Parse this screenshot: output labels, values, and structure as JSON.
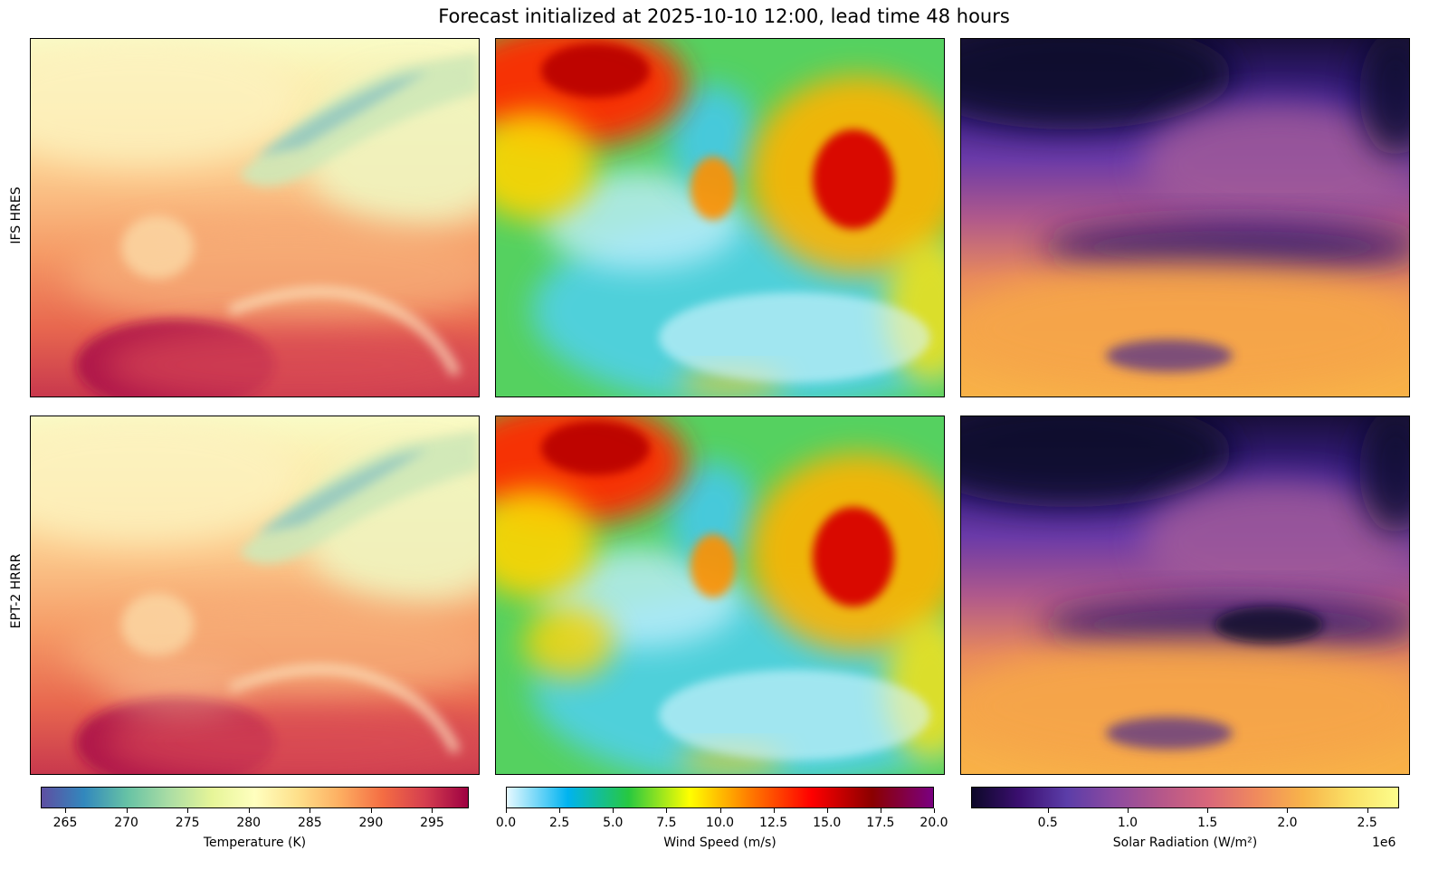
{
  "figure": {
    "title": "Forecast initialized at 2025-10-10 12:00, lead time 48 hours"
  },
  "rows": [
    "IFS HRES",
    "EPT-2 HRRR"
  ],
  "colors": {
    "temperature_cmap": [
      "#5e4fa2",
      "#3288bd",
      "#66c2a5",
      "#abdda4",
      "#e6f598",
      "#ffffbf",
      "#fee08b",
      "#fdae61",
      "#f46d43",
      "#d53e4f",
      "#9e0142"
    ],
    "wind_cmap": [
      "#e6f9ff",
      "#00b3f0",
      "#27c840",
      "#ffff00",
      "#ff7a00",
      "#ff0000",
      "#8b0000",
      "#7a0080"
    ],
    "solar_cmap": [
      "#0d0829",
      "#3b0f70",
      "#5b3da8",
      "#8c4aa0",
      "#b5578a",
      "#d9677a",
      "#f08a5d",
      "#f8b44a",
      "#fae166",
      "#fcfd8c"
    ]
  },
  "chart_data": [
    {
      "type": "heatmap",
      "row": "IFS HRES",
      "column": "Temperature",
      "colorbar_label": "Temperature (K)",
      "vmin": 263,
      "vmax": 298,
      "ticks": [
        265,
        270,
        275,
        280,
        285,
        290,
        295
      ],
      "region_summary": {
        "north_scandinavia": 272,
        "northwest_atlantic": 281,
        "central_europe": 285,
        "iberia_south": 297,
        "mediterranean": 293
      }
    },
    {
      "type": "heatmap",
      "row": "IFS HRES",
      "column": "Wind Speed",
      "colorbar_label": "Wind Speed (m/s)",
      "vmin": 0.0,
      "vmax": 20.0,
      "ticks": [
        "0.0",
        "2.5",
        "5.0",
        "7.5",
        "10.0",
        "12.5",
        "15.0",
        "17.5",
        "20.0"
      ],
      "region_summary": {
        "north_atlantic_jet": 17,
        "eastern_europe_max": 16,
        "central_europe": 4,
        "mediterranean": 3
      }
    },
    {
      "type": "heatmap",
      "row": "IFS HRES",
      "column": "Solar Radiation",
      "colorbar_label": "Solar Radiation (W/m²)",
      "scale_offset": "1e6",
      "vmin": 0.02,
      "vmax": 2.7,
      "ticks": [
        "0.5",
        "1.0",
        "1.5",
        "2.0",
        "2.5"
      ],
      "region_summary": {
        "north": 0.3,
        "central": 1.1,
        "south": 2.0
      }
    },
    {
      "type": "heatmap",
      "row": "EPT-2 HRRR",
      "column": "Temperature",
      "colorbar_label": "Temperature (K)",
      "vmin": 263,
      "vmax": 298,
      "region_summary": {
        "north_scandinavia": 272,
        "northwest_atlantic": 281,
        "central_europe": 285,
        "iberia_south": 297,
        "mediterranean": 292
      }
    },
    {
      "type": "heatmap",
      "row": "EPT-2 HRRR",
      "column": "Wind Speed",
      "colorbar_label": "Wind Speed (m/s)",
      "vmin": 0.0,
      "vmax": 20.0,
      "region_summary": {
        "north_atlantic_jet": 16,
        "eastern_europe_max": 15,
        "central_europe": 5,
        "mediterranean": 3
      }
    },
    {
      "type": "heatmap",
      "row": "EPT-2 HRRR",
      "column": "Solar Radiation",
      "colorbar_label": "Solar Radiation (W/m²)",
      "vmin": 0.02,
      "vmax": 2.7,
      "region_summary": {
        "north": 0.25,
        "central": 1.0,
        "south": 2.0
      }
    }
  ]
}
